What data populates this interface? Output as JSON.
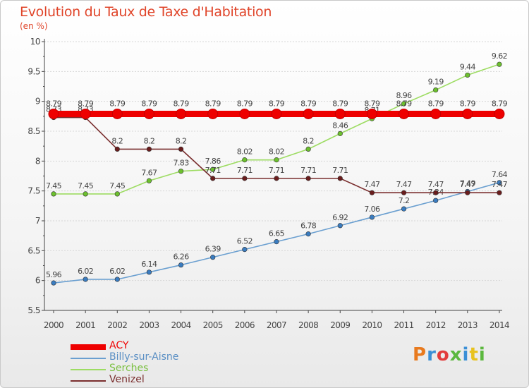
{
  "header": {
    "title": "Evolution du Taux de Taxe d'Habitation",
    "subtitle": "(en %)"
  },
  "logo": {
    "text": "Proxiti",
    "colors": [
      "#e87a1e",
      "#3a8fd6",
      "#e23b3b",
      "#5bb83e",
      "#3a8fd6",
      "#e8c21e",
      "#5bb83e"
    ]
  },
  "colors": {
    "title": "#e0452a",
    "axis_text": "#444444",
    "grid": "#d6d6d6",
    "axis": "#444444"
  },
  "chart_data": {
    "type": "line",
    "title": "Evolution du Taux de Taxe d'Habitation",
    "subtitle": "(en %)",
    "xlabel": "",
    "ylabel": "",
    "x": [
      2000,
      2001,
      2002,
      2003,
      2004,
      2005,
      2006,
      2007,
      2008,
      2009,
      2010,
      2011,
      2012,
      2013,
      2014
    ],
    "ylim": [
      5.5,
      10
    ],
    "yticks": [
      5.5,
      6,
      6.5,
      7,
      7.5,
      8,
      8.5,
      9,
      9.5,
      10
    ],
    "ytick_labels": [
      "5.5",
      "6",
      "6.5",
      "7",
      "7.5",
      "8",
      "8.5",
      "9",
      "9.5",
      "10"
    ],
    "grid": "horizontal",
    "legend_position": "bottom-left",
    "series": [
      {
        "name": "ACY",
        "color": "#ee0000",
        "style": "thick",
        "values": [
          8.79,
          8.79,
          8.79,
          8.79,
          8.79,
          8.79,
          8.79,
          8.79,
          8.79,
          8.79,
          8.79,
          8.79,
          8.79,
          8.79,
          8.79
        ],
        "labels": [
          "8.79",
          "8.79",
          "8.79",
          "8.79",
          "8.79",
          "8.79",
          "8.79",
          "8.79",
          "8.79",
          "8.79",
          "8.79",
          "8.79",
          "8.79",
          "8.79",
          "8.79"
        ]
      },
      {
        "name": "Billy-sur-Aisne",
        "color": "#6a9fd0",
        "point_color": "#3a7cc0",
        "style": "normal",
        "values": [
          5.96,
          6.02,
          6.02,
          6.14,
          6.26,
          6.39,
          6.52,
          6.65,
          6.78,
          6.92,
          7.06,
          7.2,
          7.34,
          7.49,
          7.64
        ],
        "labels": [
          "5.96",
          "6.02",
          "6.02",
          "6.14",
          "6.26",
          "6.39",
          "6.52",
          "6.65",
          "6.78",
          "6.92",
          "7.06",
          "7.2",
          "7.34",
          "7.49",
          "7.64"
        ]
      },
      {
        "name": "Serches",
        "color": "#9ddc62",
        "point_color": "#6cc02e",
        "style": "normal",
        "values": [
          7.45,
          7.45,
          7.45,
          7.67,
          7.83,
          7.86,
          8.02,
          8.02,
          8.2,
          8.46,
          8.71,
          8.96,
          9.19,
          9.44,
          9.62
        ],
        "labels": [
          "7.45",
          "7.45",
          "7.45",
          "7.67",
          "7.83",
          "7.86",
          "8.02",
          "8.02",
          "8.2",
          "8.46",
          "8.71",
          "8.96",
          "9.19",
          "9.44",
          "9.62"
        ]
      },
      {
        "name": "Venizel",
        "color": "#7a2e2e",
        "point_color": "#6a1d1d",
        "style": "normal",
        "values": [
          8.73,
          8.73,
          8.2,
          8.2,
          8.2,
          7.71,
          7.71,
          7.71,
          7.71,
          7.71,
          7.47,
          7.47,
          7.47,
          7.47,
          7.47
        ],
        "labels": [
          "8.73",
          "8.73",
          "8.2",
          "8.2",
          "8.2",
          "7.71",
          "7.71",
          "7.71",
          "7.71",
          "7.71",
          "7.47",
          "7.47",
          "7.47",
          "7.47",
          "7.47"
        ]
      }
    ]
  }
}
